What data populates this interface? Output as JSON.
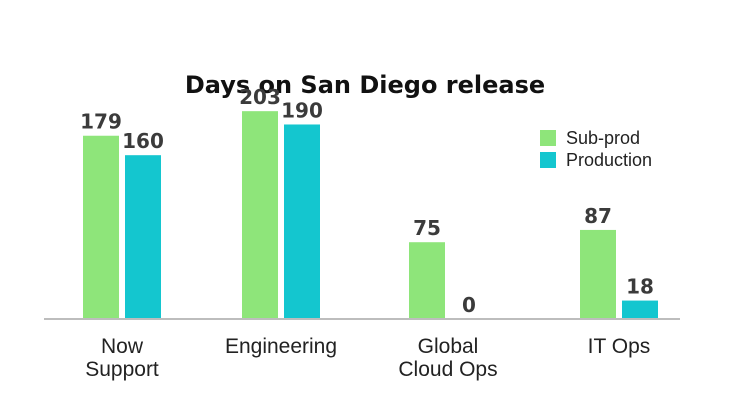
{
  "chart_data": {
    "type": "bar",
    "title": "Days on San Diego release",
    "categories": [
      [
        "Now",
        "Support"
      ],
      [
        "Engineering"
      ],
      [
        "Global",
        "Cloud Ops"
      ],
      [
        "IT Ops"
      ]
    ],
    "series": [
      {
        "name": "Sub-prod",
        "color": "#8ee57a",
        "values": [
          179,
          203,
          75,
          87
        ]
      },
      {
        "name": "Production",
        "color": "#14c6cf",
        "values": [
          160,
          190,
          0,
          18
        ]
      }
    ],
    "xlabel": "",
    "ylabel": "",
    "ylim": [
      0,
      210
    ],
    "grid": false,
    "legend_position": "top-right"
  }
}
